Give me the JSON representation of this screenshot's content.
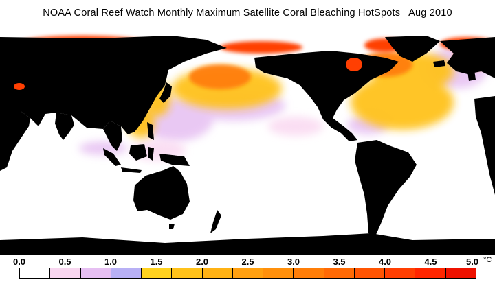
{
  "title": "NOAA Coral Reef Watch Monthly Maximum Satellite Coral Bleaching HotSpots   Aug 2010",
  "legend": {
    "unit": "°C",
    "min": 0.0,
    "max": 5.0,
    "tick_labels": [
      "0.0",
      "0.5",
      "1.0",
      "1.5",
      "2.0",
      "2.5",
      "3.0",
      "3.5",
      "4.0",
      "4.5",
      "5.0"
    ],
    "colors": [
      "#ffffff",
      "#f9d6f0",
      "#e6bff2",
      "#b8b0f5",
      "#ffd21f",
      "#ffc21a",
      "#ffb214",
      "#ffa010",
      "#ff900c",
      "#ff7e08",
      "#ff6a05",
      "#ff5503",
      "#ff3f02",
      "#ff2600",
      "#ee1100"
    ]
  },
  "colors": {
    "land": "#000000",
    "ocean_no_stress": "#ffffff",
    "hotspot_low": "#e6bff2",
    "hotspot_mid": "#ffc21a",
    "hotspot_high": "#ff3f02"
  }
}
